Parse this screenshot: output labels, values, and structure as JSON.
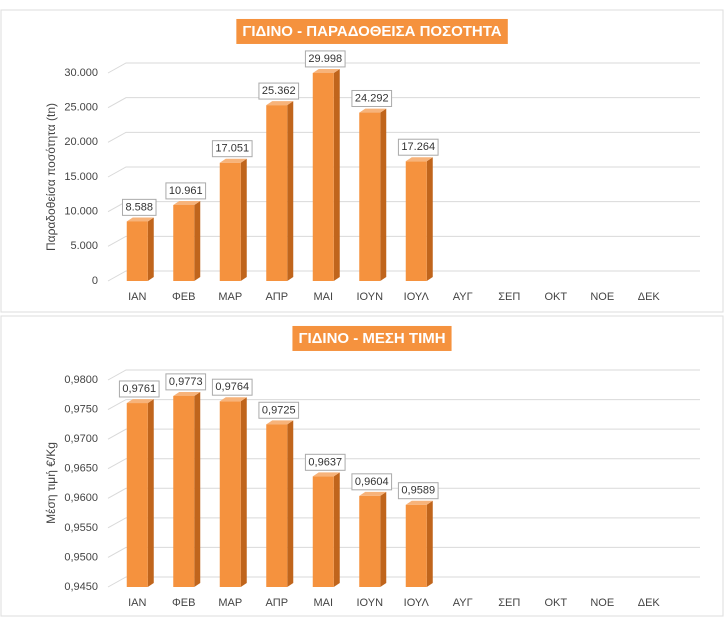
{
  "chart_data": [
    {
      "type": "bar",
      "title": "ΓΙΔΙΝΟ - ΠΑΡΑΔΟΘΕΙΣΑ ΠΟΣΟΤΗΤΑ",
      "y_label": "Παραδοθείσα ποσότητα (tn)",
      "categories": [
        "ΙΑΝ",
        "ΦΕΒ",
        "ΜΑΡ",
        "ΑΠΡ",
        "ΜΑΙ",
        "ΙΟΥΝ",
        "ΙΟΥΛ",
        "ΑΥΓ",
        "ΣΕΠ",
        "ΟΚΤ",
        "ΝΟΕ",
        "ΔΕΚ"
      ],
      "values": [
        8588,
        10961,
        17051,
        25362,
        29998,
        24292,
        17264,
        null,
        null,
        null,
        null,
        null
      ],
      "value_labels": [
        "8.588",
        "10.961",
        "17.051",
        "25.362",
        "29.998",
        "24.292",
        "17.264",
        null,
        null,
        null,
        null,
        null
      ],
      "color": "#f5923e",
      "ylim": [
        0,
        30000
      ],
      "yticks": [
        0,
        {
          "value": 5000,
          "label": "5.000"
        },
        {
          "value": 10000,
          "label": "10.000"
        },
        {
          "value": 15000,
          "label": "15.000"
        },
        {
          "value": 20000,
          "label": "20.000"
        },
        {
          "value": 25000,
          "label": "25.000"
        },
        {
          "value": 30000,
          "label": "30.000"
        }
      ],
      "grid": true
    },
    {
      "type": "bar",
      "title": "ΓΙΔΙΝΟ - ΜΕΣΗ ΤΙΜΗ",
      "y_label": "Μέση τιμή €/Kg",
      "categories": [
        "ΙΑΝ",
        "ΦΕΒ",
        "ΜΑΡ",
        "ΑΠΡ",
        "ΜΑΙ",
        "ΙΟΥΝ",
        "ΙΟΥΛ",
        "ΑΥΓ",
        "ΣΕΠ",
        "ΟΚΤ",
        "ΝΟΕ",
        "ΔΕΚ"
      ],
      "values": [
        0.9761,
        0.9773,
        0.9764,
        0.9725,
        0.9637,
        0.9604,
        0.9589,
        null,
        null,
        null,
        null,
        null
      ],
      "value_labels": [
        "0,9761",
        "0,9773",
        "0,9764",
        "0,9725",
        "0,9637",
        "0,9604",
        "0,9589",
        null,
        null,
        null,
        null,
        null
      ],
      "color": "#f5923e",
      "ylim": [
        0.945,
        0.98
      ],
      "yticks": [
        {
          "value": 0.945,
          "label": "0,9450"
        },
        {
          "value": 0.95,
          "label": "0,9500"
        },
        {
          "value": 0.955,
          "label": "0,9550"
        },
        {
          "value": 0.96,
          "label": "0,9600"
        },
        {
          "value": 0.965,
          "label": "0,9650"
        },
        {
          "value": 0.97,
          "label": "0,9700"
        },
        {
          "value": 0.975,
          "label": "0,9750"
        },
        {
          "value": 0.98,
          "label": "0,9800"
        }
      ],
      "grid": true
    }
  ]
}
